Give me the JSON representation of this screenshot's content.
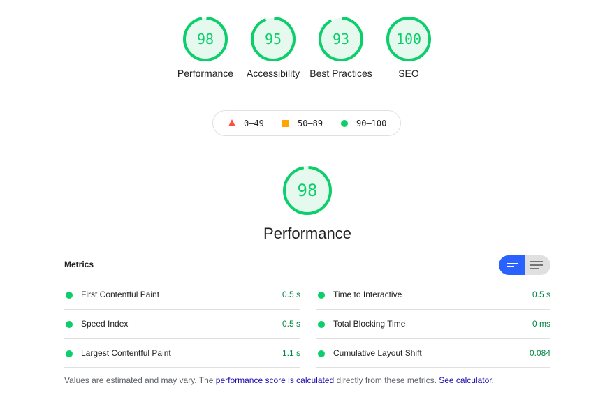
{
  "categories": [
    {
      "label": "Performance",
      "score": 98
    },
    {
      "label": "Accessibility",
      "score": 95
    },
    {
      "label": "Best Practices",
      "score": 93
    },
    {
      "label": "SEO",
      "score": 100
    }
  ],
  "legend": {
    "fail": "0–49",
    "average": "50–89",
    "pass": "90–100"
  },
  "colors": {
    "pass": "#0cce6b",
    "average": "#ffa400",
    "fail": "#ff4e42",
    "accent": "#2962ff"
  },
  "performance": {
    "title": "Performance",
    "score": 98
  },
  "metrics": {
    "header": "Metrics",
    "items": [
      {
        "name": "First Contentful Paint",
        "value": "0.5 s"
      },
      {
        "name": "Time to Interactive",
        "value": "0.5 s"
      },
      {
        "name": "Speed Index",
        "value": "0.5 s"
      },
      {
        "name": "Total Blocking Time",
        "value": "0 ms"
      },
      {
        "name": "Largest Contentful Paint",
        "value": "1.1 s"
      },
      {
        "name": "Cumulative Layout Shift",
        "value": "0.084"
      }
    ]
  },
  "footer": {
    "text1": "Values are estimated and may vary. The ",
    "link1": "performance score is calculated",
    "text2": " directly from these metrics. ",
    "link2": "See calculator."
  }
}
